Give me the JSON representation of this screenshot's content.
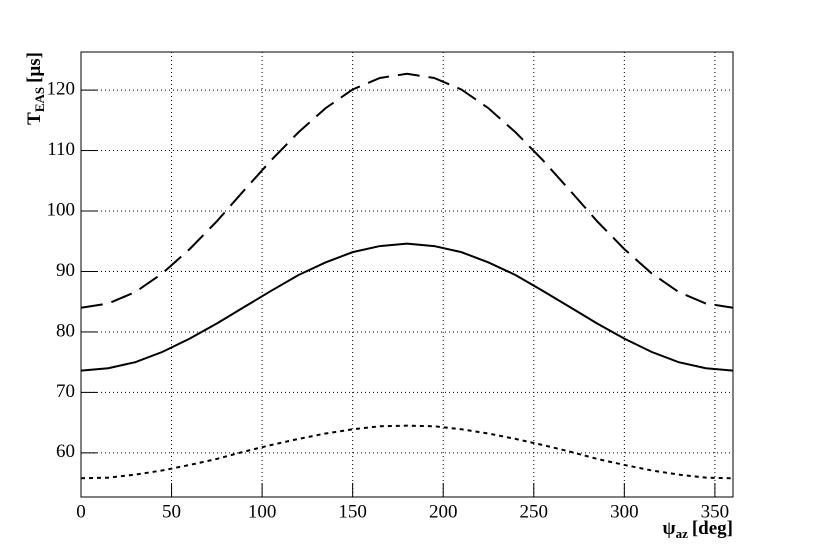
{
  "chart_data": {
    "type": "line",
    "xlabel": {
      "symbol": "ψ",
      "subscript": "az",
      "unit": "[deg]"
    },
    "ylabel": {
      "symbol": "T",
      "subscript": "EAS",
      "unit": "[μs]"
    },
    "x": [
      0,
      15,
      30,
      45,
      60,
      75,
      90,
      105,
      120,
      135,
      150,
      165,
      180,
      195,
      210,
      225,
      240,
      255,
      270,
      285,
      300,
      315,
      330,
      345,
      360
    ],
    "series": [
      {
        "color": "#000000",
        "dash": "dashed",
        "values": [
          84,
          84.7,
          86.6,
          89.7,
          93.7,
          98.3,
          103.4,
          108.4,
          113.0,
          117.0,
          120.1,
          122.0,
          122.7,
          122.0,
          120.1,
          117.0,
          113.0,
          108.4,
          103.4,
          98.3,
          93.7,
          89.7,
          86.6,
          84.7,
          84
        ]
      },
      {
        "color": "#000000",
        "dash": "solid",
        "values": [
          73.6,
          74.0,
          75.0,
          76.7,
          78.9,
          81.4,
          84.1,
          86.8,
          89.4,
          91.5,
          93.2,
          94.2,
          94.6,
          94.2,
          93.2,
          91.5,
          89.4,
          86.8,
          84.1,
          81.4,
          78.9,
          76.7,
          75.0,
          74.0,
          73.6
        ]
      },
      {
        "color": "#000000",
        "dash": "dotted",
        "values": [
          55.8,
          55.9,
          56.4,
          57.1,
          58.0,
          59.0,
          60.2,
          61.3,
          62.3,
          63.2,
          63.9,
          64.4,
          64.5,
          64.4,
          63.9,
          63.2,
          62.3,
          61.3,
          60.2,
          59.0,
          58.0,
          57.1,
          56.4,
          55.9,
          55.8
        ]
      }
    ],
    "xlim": [
      0,
      360
    ],
    "xticks": [
      0,
      50,
      100,
      150,
      200,
      250,
      300,
      350
    ],
    "ylim": [
      52.7,
      126.3
    ],
    "yticks": [
      60,
      70,
      80,
      90,
      100,
      110,
      120
    ],
    "grid": true
  }
}
